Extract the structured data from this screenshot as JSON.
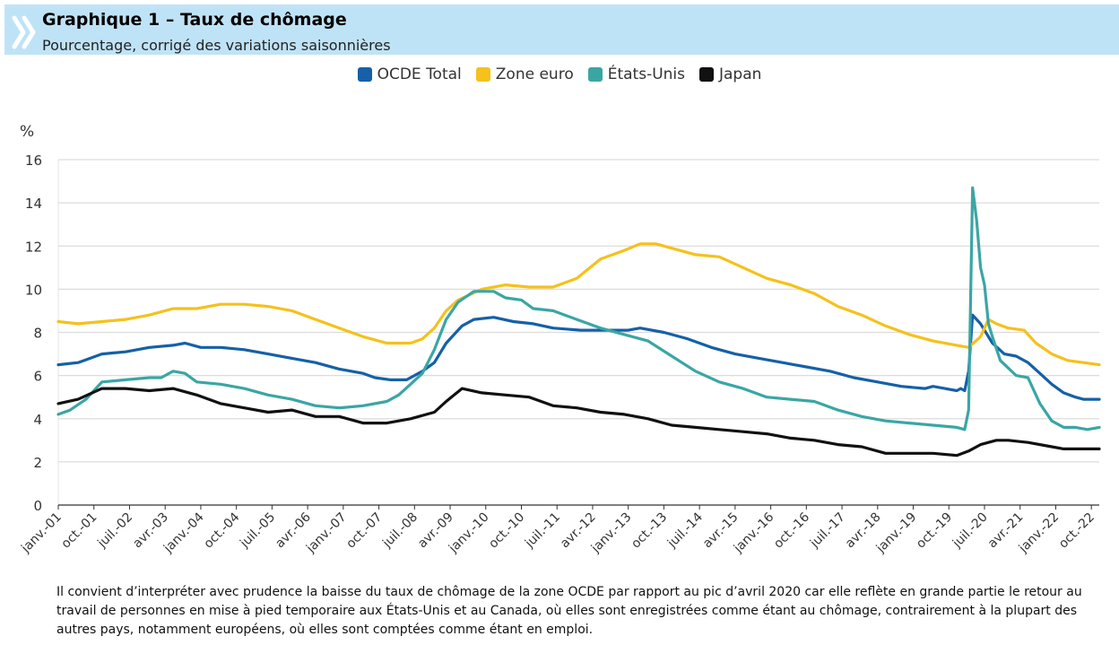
{
  "header": {
    "title": "Graphique 1 – Taux de chômage",
    "subtitle": "Pourcentage, corrigé des variations saisonnières",
    "logo_icon": "double-chevron-icon"
  },
  "footnote": "Il convient d’interpréter avec prudence la baisse du taux de chômage de la zone OCDE par rapport au pic d’avril 2020 car elle reflète en grande partie le retour au travail de personnes en mise à pied temporaire aux États-Unis et au Canada, où elles sont enregistrées comme étant au chômage, contrairement à la plupart des autres pays, notamment européens, où elles sont comptées comme étant en emploi.",
  "colors": {
    "header_bg": "#bfe3f6",
    "grid": "#dcdcdc",
    "axis": "#333333"
  },
  "chart_data": {
    "type": "line",
    "title": "Graphique 1 – Taux de chômage",
    "subtitle": "Pourcentage, corrigé des variations saisonnières",
    "ylabel": "%",
    "ylim": [
      0,
      16
    ],
    "yticks": [
      0,
      2,
      4,
      6,
      8,
      10,
      12,
      14,
      16
    ],
    "xlim": [
      "2001-01",
      "2022-12"
    ],
    "xtick_labels": [
      "janv.-01",
      "oct.-01",
      "juil.-02",
      "avr.-03",
      "janv.-04",
      "oct.-04",
      "juil.-05",
      "avr.-06",
      "janv.-07",
      "oct.-07",
      "juil.-08",
      "avr.-09",
      "janv.-10",
      "oct.-10",
      "juil.-11",
      "avr.-12",
      "janv.-13",
      "oct.-13",
      "juil.-14",
      "avr.-15",
      "janv.-16",
      "oct.-16",
      "juil.-17",
      "avr.-18",
      "janv.-19",
      "oct.-19",
      "juil.-20",
      "avr.-21",
      "janv.-22",
      "oct.-22"
    ],
    "xtick_dates": [
      "2001-01",
      "2001-10",
      "2002-07",
      "2003-04",
      "2004-01",
      "2004-10",
      "2005-07",
      "2006-04",
      "2007-01",
      "2007-10",
      "2008-07",
      "2009-04",
      "2010-01",
      "2010-10",
      "2011-07",
      "2012-04",
      "2013-01",
      "2013-10",
      "2014-07",
      "2015-04",
      "2016-01",
      "2016-10",
      "2017-07",
      "2018-04",
      "2019-01",
      "2019-10",
      "2020-07",
      "2021-04",
      "2022-01",
      "2022-10"
    ],
    "grid": true,
    "legend_position": "top-center",
    "series": [
      {
        "name": "OCDE Total",
        "color": "#1560a8",
        "points": [
          [
            "2001-01",
            6.5
          ],
          [
            "2001-06",
            6.6
          ],
          [
            "2001-12",
            7.0
          ],
          [
            "2002-06",
            7.1
          ],
          [
            "2002-12",
            7.3
          ],
          [
            "2003-06",
            7.4
          ],
          [
            "2003-09",
            7.5
          ],
          [
            "2004-01",
            7.3
          ],
          [
            "2004-06",
            7.3
          ],
          [
            "2004-12",
            7.2
          ],
          [
            "2005-06",
            7.0
          ],
          [
            "2005-12",
            6.8
          ],
          [
            "2006-06",
            6.6
          ],
          [
            "2006-12",
            6.3
          ],
          [
            "2007-06",
            6.1
          ],
          [
            "2007-09",
            5.9
          ],
          [
            "2008-01",
            5.8
          ],
          [
            "2008-05",
            5.8
          ],
          [
            "2008-09",
            6.2
          ],
          [
            "2008-12",
            6.6
          ],
          [
            "2009-03",
            7.5
          ],
          [
            "2009-07",
            8.3
          ],
          [
            "2009-10",
            8.6
          ],
          [
            "2010-03",
            8.7
          ],
          [
            "2010-08",
            8.5
          ],
          [
            "2011-01",
            8.4
          ],
          [
            "2011-06",
            8.2
          ],
          [
            "2012-01",
            8.1
          ],
          [
            "2012-07",
            8.1
          ],
          [
            "2013-01",
            8.1
          ],
          [
            "2013-04",
            8.2
          ],
          [
            "2013-10",
            8.0
          ],
          [
            "2014-04",
            7.7
          ],
          [
            "2014-10",
            7.3
          ],
          [
            "2015-04",
            7.0
          ],
          [
            "2015-10",
            6.8
          ],
          [
            "2016-04",
            6.6
          ],
          [
            "2016-10",
            6.4
          ],
          [
            "2017-04",
            6.2
          ],
          [
            "2017-10",
            5.9
          ],
          [
            "2018-04",
            5.7
          ],
          [
            "2018-10",
            5.5
          ],
          [
            "2019-04",
            5.4
          ],
          [
            "2019-06",
            5.5
          ],
          [
            "2019-09",
            5.4
          ],
          [
            "2019-12",
            5.3
          ],
          [
            "2020-01",
            5.4
          ],
          [
            "2020-02",
            5.3
          ],
          [
            "2020-03",
            6.2
          ],
          [
            "2020-04",
            8.8
          ],
          [
            "2020-06",
            8.4
          ],
          [
            "2020-09",
            7.5
          ],
          [
            "2020-12",
            7.0
          ],
          [
            "2021-03",
            6.9
          ],
          [
            "2021-06",
            6.6
          ],
          [
            "2021-09",
            6.1
          ],
          [
            "2021-12",
            5.6
          ],
          [
            "2022-03",
            5.2
          ],
          [
            "2022-06",
            5.0
          ],
          [
            "2022-08",
            4.9
          ],
          [
            "2022-12",
            4.9
          ]
        ]
      },
      {
        "name": "Zone euro",
        "color": "#f5c11b",
        "points": [
          [
            "2001-01",
            8.5
          ],
          [
            "2001-06",
            8.4
          ],
          [
            "2001-12",
            8.5
          ],
          [
            "2002-06",
            8.6
          ],
          [
            "2002-12",
            8.8
          ],
          [
            "2003-06",
            9.1
          ],
          [
            "2003-12",
            9.1
          ],
          [
            "2004-06",
            9.3
          ],
          [
            "2004-12",
            9.3
          ],
          [
            "2005-06",
            9.2
          ],
          [
            "2005-12",
            9.0
          ],
          [
            "2006-06",
            8.6
          ],
          [
            "2006-12",
            8.2
          ],
          [
            "2007-06",
            7.8
          ],
          [
            "2007-12",
            7.5
          ],
          [
            "2008-06",
            7.5
          ],
          [
            "2008-09",
            7.7
          ],
          [
            "2008-12",
            8.2
          ],
          [
            "2009-03",
            9.0
          ],
          [
            "2009-06",
            9.5
          ],
          [
            "2009-12",
            10.0
          ],
          [
            "2010-06",
            10.2
          ],
          [
            "2010-12",
            10.1
          ],
          [
            "2011-06",
            10.1
          ],
          [
            "2011-12",
            10.5
          ],
          [
            "2012-06",
            11.4
          ],
          [
            "2012-12",
            11.8
          ],
          [
            "2013-04",
            12.1
          ],
          [
            "2013-08",
            12.1
          ],
          [
            "2013-12",
            11.9
          ],
          [
            "2014-06",
            11.6
          ],
          [
            "2014-12",
            11.5
          ],
          [
            "2015-06",
            11.0
          ],
          [
            "2015-12",
            10.5
          ],
          [
            "2016-06",
            10.2
          ],
          [
            "2016-12",
            9.8
          ],
          [
            "2017-06",
            9.2
          ],
          [
            "2017-12",
            8.8
          ],
          [
            "2018-06",
            8.3
          ],
          [
            "2018-12",
            7.9
          ],
          [
            "2019-06",
            7.6
          ],
          [
            "2019-12",
            7.4
          ],
          [
            "2020-03",
            7.3
          ],
          [
            "2020-06",
            7.8
          ],
          [
            "2020-08",
            8.6
          ],
          [
            "2020-10",
            8.4
          ],
          [
            "2021-01",
            8.2
          ],
          [
            "2021-05",
            8.1
          ],
          [
            "2021-08",
            7.5
          ],
          [
            "2021-12",
            7.0
          ],
          [
            "2022-04",
            6.7
          ],
          [
            "2022-08",
            6.6
          ],
          [
            "2022-12",
            6.5
          ]
        ]
      },
      {
        "name": "États-Unis",
        "color": "#3aa6a4",
        "points": [
          [
            "2001-01",
            4.2
          ],
          [
            "2001-04",
            4.4
          ],
          [
            "2001-08",
            4.9
          ],
          [
            "2001-12",
            5.7
          ],
          [
            "2002-06",
            5.8
          ],
          [
            "2002-12",
            5.9
          ],
          [
            "2003-03",
            5.9
          ],
          [
            "2003-06",
            6.2
          ],
          [
            "2003-09",
            6.1
          ],
          [
            "2003-12",
            5.7
          ],
          [
            "2004-06",
            5.6
          ],
          [
            "2004-12",
            5.4
          ],
          [
            "2005-06",
            5.1
          ],
          [
            "2005-12",
            4.9
          ],
          [
            "2006-06",
            4.6
          ],
          [
            "2006-12",
            4.5
          ],
          [
            "2007-06",
            4.6
          ],
          [
            "2007-12",
            4.8
          ],
          [
            "2008-03",
            5.1
          ],
          [
            "2008-06",
            5.6
          ],
          [
            "2008-09",
            6.1
          ],
          [
            "2008-12",
            7.2
          ],
          [
            "2009-03",
            8.6
          ],
          [
            "2009-06",
            9.4
          ],
          [
            "2009-10",
            9.9
          ],
          [
            "2010-03",
            9.9
          ],
          [
            "2010-06",
            9.6
          ],
          [
            "2010-10",
            9.5
          ],
          [
            "2011-01",
            9.1
          ],
          [
            "2011-06",
            9.0
          ],
          [
            "2011-12",
            8.6
          ],
          [
            "2012-06",
            8.2
          ],
          [
            "2012-12",
            7.9
          ],
          [
            "2013-06",
            7.6
          ],
          [
            "2013-12",
            6.9
          ],
          [
            "2014-06",
            6.2
          ],
          [
            "2014-12",
            5.7
          ],
          [
            "2015-06",
            5.4
          ],
          [
            "2015-12",
            5.0
          ],
          [
            "2016-06",
            4.9
          ],
          [
            "2016-12",
            4.8
          ],
          [
            "2017-06",
            4.4
          ],
          [
            "2017-12",
            4.1
          ],
          [
            "2018-06",
            3.9
          ],
          [
            "2018-12",
            3.8
          ],
          [
            "2019-06",
            3.7
          ],
          [
            "2019-12",
            3.6
          ],
          [
            "2020-02",
            3.5
          ],
          [
            "2020-03",
            4.4
          ],
          [
            "2020-04",
            14.7
          ],
          [
            "2020-05",
            13.2
          ],
          [
            "2020-06",
            11.0
          ],
          [
            "2020-07",
            10.2
          ],
          [
            "2020-08",
            8.4
          ],
          [
            "2020-09",
            7.8
          ],
          [
            "2020-11",
            6.7
          ],
          [
            "2021-03",
            6.0
          ],
          [
            "2021-06",
            5.9
          ],
          [
            "2021-09",
            4.7
          ],
          [
            "2021-12",
            3.9
          ],
          [
            "2022-03",
            3.6
          ],
          [
            "2022-06",
            3.6
          ],
          [
            "2022-09",
            3.5
          ],
          [
            "2022-12",
            3.6
          ]
        ]
      },
      {
        "name": "Japan",
        "color": "#111111",
        "points": [
          [
            "2001-01",
            4.7
          ],
          [
            "2001-06",
            4.9
          ],
          [
            "2001-12",
            5.4
          ],
          [
            "2002-06",
            5.4
          ],
          [
            "2002-12",
            5.3
          ],
          [
            "2003-06",
            5.4
          ],
          [
            "2003-12",
            5.1
          ],
          [
            "2004-06",
            4.7
          ],
          [
            "2004-12",
            4.5
          ],
          [
            "2005-06",
            4.3
          ],
          [
            "2005-12",
            4.4
          ],
          [
            "2006-06",
            4.1
          ],
          [
            "2006-12",
            4.1
          ],
          [
            "2007-06",
            3.8
          ],
          [
            "2007-12",
            3.8
          ],
          [
            "2008-06",
            4.0
          ],
          [
            "2008-12",
            4.3
          ],
          [
            "2009-03",
            4.8
          ],
          [
            "2009-07",
            5.4
          ],
          [
            "2009-12",
            5.2
          ],
          [
            "2010-06",
            5.1
          ],
          [
            "2010-12",
            5.0
          ],
          [
            "2011-06",
            4.6
          ],
          [
            "2011-12",
            4.5
          ],
          [
            "2012-06",
            4.3
          ],
          [
            "2012-12",
            4.2
          ],
          [
            "2013-06",
            4.0
          ],
          [
            "2013-12",
            3.7
          ],
          [
            "2014-06",
            3.6
          ],
          [
            "2014-12",
            3.5
          ],
          [
            "2015-06",
            3.4
          ],
          [
            "2015-12",
            3.3
          ],
          [
            "2016-06",
            3.1
          ],
          [
            "2016-12",
            3.0
          ],
          [
            "2017-06",
            2.8
          ],
          [
            "2017-12",
            2.7
          ],
          [
            "2018-06",
            2.4
          ],
          [
            "2018-12",
            2.4
          ],
          [
            "2019-06",
            2.4
          ],
          [
            "2019-12",
            2.3
          ],
          [
            "2020-03",
            2.5
          ],
          [
            "2020-06",
            2.8
          ],
          [
            "2020-10",
            3.0
          ],
          [
            "2021-01",
            3.0
          ],
          [
            "2021-06",
            2.9
          ],
          [
            "2021-12",
            2.7
          ],
          [
            "2022-03",
            2.6
          ],
          [
            "2022-06",
            2.6
          ],
          [
            "2022-12",
            2.6
          ]
        ]
      }
    ]
  }
}
